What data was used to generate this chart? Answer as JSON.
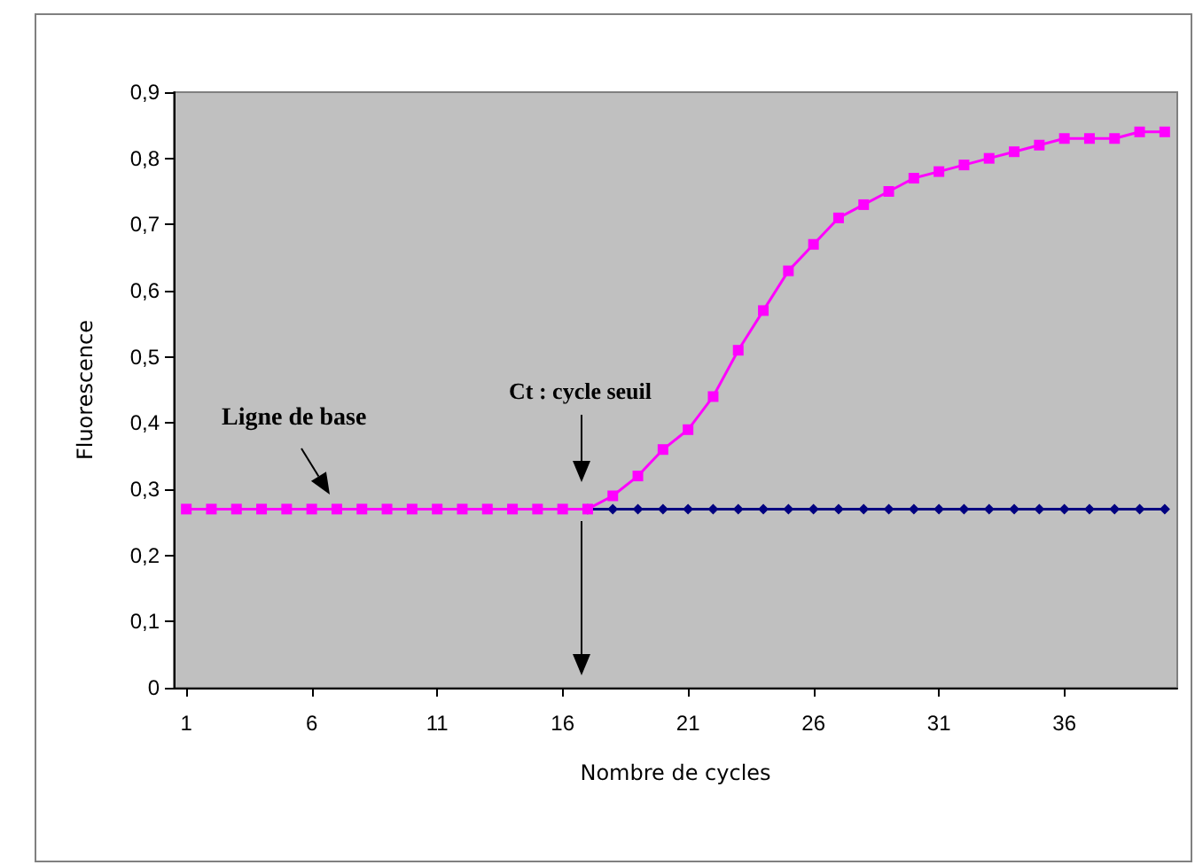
{
  "chart_data": {
    "type": "line",
    "xlabel": "Nombre de cycles",
    "ylabel": "Fluorescence",
    "x": [
      1,
      2,
      3,
      4,
      5,
      6,
      7,
      8,
      9,
      10,
      11,
      12,
      13,
      14,
      15,
      16,
      17,
      18,
      19,
      20,
      21,
      22,
      23,
      24,
      25,
      26,
      27,
      28,
      29,
      30,
      31,
      32,
      33,
      34,
      35,
      36,
      37,
      38,
      39,
      40
    ],
    "xlim": [
      0.5,
      40.5
    ],
    "xticks": [
      1,
      6,
      11,
      16,
      21,
      26,
      31,
      36
    ],
    "series": [
      {
        "color": "#000080",
        "marker": "diamond",
        "values": [
          null,
          null,
          null,
          null,
          null,
          null,
          null,
          null,
          null,
          null,
          null,
          null,
          null,
          null,
          null,
          null,
          0.27,
          0.27,
          0.27,
          0.27,
          0.27,
          0.27,
          0.27,
          0.27,
          0.27,
          0.27,
          0.27,
          0.27,
          0.27,
          0.27,
          0.27,
          0.27,
          0.27,
          0.27,
          0.27,
          0.27,
          0.27,
          0.27,
          0.27,
          0.27
        ]
      },
      {
        "color": "#ff00ff",
        "marker": "square",
        "values": [
          0.27,
          0.27,
          0.27,
          0.27,
          0.27,
          0.27,
          0.27,
          0.27,
          0.27,
          0.27,
          0.27,
          0.27,
          0.27,
          0.27,
          0.27,
          0.27,
          0.27,
          0.29,
          0.32,
          0.36,
          0.39,
          0.44,
          0.51,
          0.57,
          0.63,
          0.67,
          0.71,
          0.73,
          0.75,
          0.77,
          0.78,
          0.79,
          0.8,
          0.81,
          0.82,
          0.83,
          0.83,
          0.83,
          0.84,
          0.84
        ]
      }
    ],
    "ylim": [
      0,
      0.9
    ],
    "yticks": [
      0,
      {
        "value": 0.1,
        "label": "0,1"
      },
      {
        "value": 0.2,
        "label": "0,2"
      },
      {
        "value": 0.3,
        "label": "0,3"
      },
      {
        "value": 0.4,
        "label": "0,4"
      },
      {
        "value": 0.5,
        "label": "0,5"
      },
      {
        "value": 0.6,
        "label": "0,6"
      },
      {
        "value": 0.7,
        "label": "0,7"
      },
      {
        "value": 0.8,
        "label": "0,8"
      },
      {
        "value": 0.9,
        "label": "0,9"
      }
    ],
    "grid": false,
    "line_style": "solid",
    "annotations": [
      "Ligne de base",
      "Ct : cycle seuil"
    ]
  }
}
